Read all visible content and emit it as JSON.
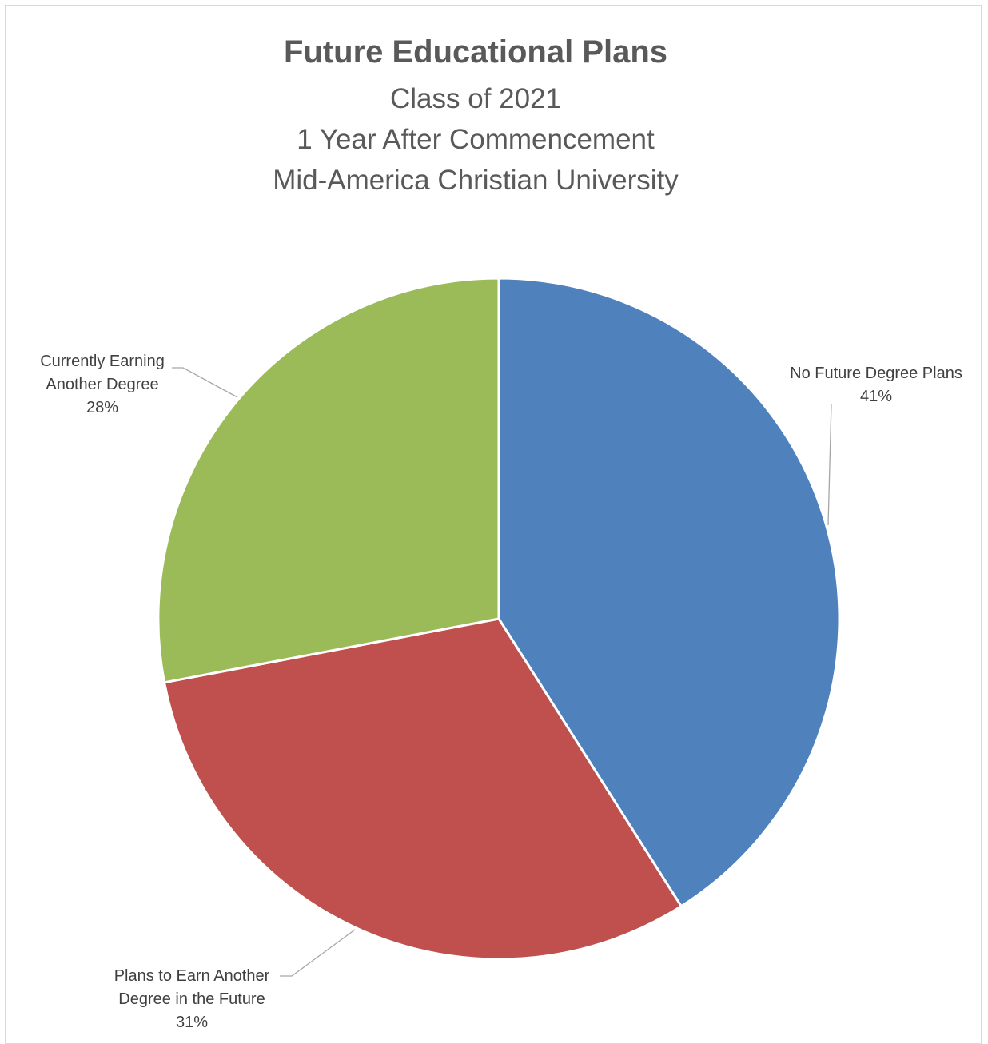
{
  "chart_data": {
    "type": "pie",
    "title": "Future Educational Plans",
    "subtitle": [
      "Class of 2021",
      "1 Year After Commencement",
      "Mid-America Christian University"
    ],
    "slices": [
      {
        "name": "No Future Degree Plans",
        "label_lines": [
          "No Future Degree Plans"
        ],
        "value": 41,
        "value_label": "41%",
        "color": "#4f81bd"
      },
      {
        "name": "Plans to Earn Another Degree in the Future",
        "label_lines": [
          "Plans to Earn Another",
          "Degree in the Future"
        ],
        "value": 31,
        "value_label": "31%",
        "color": "#c0504d"
      },
      {
        "name": "Currently Earning Another Degree",
        "label_lines": [
          "Currently Earning",
          "Another Degree"
        ],
        "value": 28,
        "value_label": "28%",
        "color": "#9bbb59"
      }
    ],
    "start_angle_deg": 0,
    "direction": "clockwise",
    "legend": "none"
  }
}
